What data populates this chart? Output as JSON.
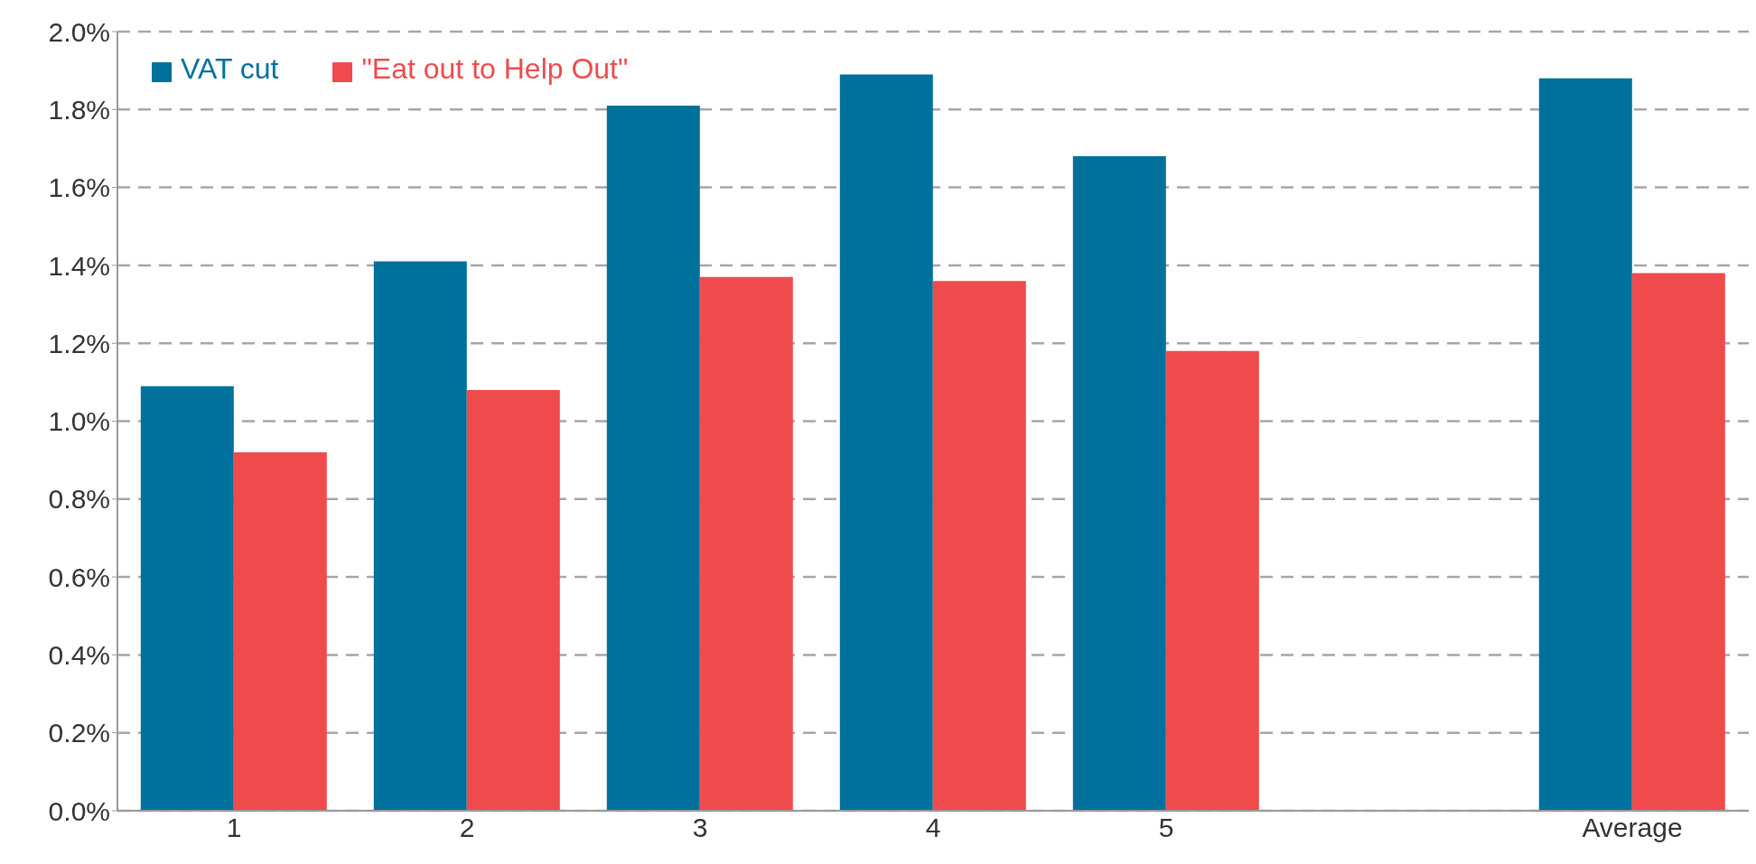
{
  "chart_data": {
    "type": "bar",
    "categories": [
      "1",
      "2",
      "3",
      "4",
      "5",
      null,
      "Average"
    ],
    "series": [
      {
        "name": "VAT cut",
        "color": "#00719c",
        "values": [
          1.09,
          1.41,
          1.81,
          1.89,
          1.68,
          null,
          1.88
        ]
      },
      {
        "name": "\"Eat out to Help Out\"",
        "color": "#ef4b4d",
        "values": [
          0.92,
          1.08,
          1.37,
          1.36,
          1.18,
          null,
          1.38
        ]
      }
    ],
    "ylim": [
      0,
      2.0
    ],
    "yticks": [
      {
        "value": 0,
        "label": "0.0%"
      },
      {
        "value": 0.2,
        "label": "0.2%"
      },
      {
        "value": 0.4,
        "label": "0.4%"
      },
      {
        "value": 0.6,
        "label": "0.6%"
      },
      {
        "value": 0.8,
        "label": "0.8%"
      },
      {
        "value": 1.0,
        "label": "1.0%"
      },
      {
        "value": 1.2,
        "label": "1.2%"
      },
      {
        "value": 1.4,
        "label": "1.4%"
      },
      {
        "value": 1.6,
        "label": "1.6%"
      },
      {
        "value": 1.8,
        "label": "1.8%"
      },
      {
        "value": 2.0,
        "label": "2.0%"
      }
    ],
    "grid": "y",
    "legend": "top left"
  }
}
